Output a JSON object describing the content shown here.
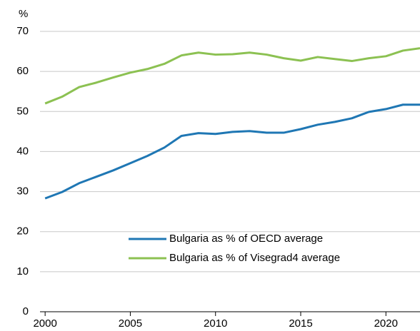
{
  "chart_data": {
    "type": "line",
    "y_unit_label": "%",
    "x": [
      2000,
      2001,
      2002,
      2003,
      2004,
      2005,
      2006,
      2007,
      2008,
      2009,
      2010,
      2011,
      2012,
      2013,
      2014,
      2015,
      2016,
      2017,
      2018,
      2019,
      2020,
      2021,
      2022
    ],
    "series": [
      {
        "name": "Bulgaria as % of OECD average",
        "color": "#1f77b4",
        "values": [
          28.3,
          29.9,
          32.1,
          33.7,
          35.3,
          37.1,
          38.9,
          41.0,
          43.9,
          44.6,
          44.4,
          44.9,
          45.1,
          44.7,
          44.7,
          45.6,
          46.7,
          47.4,
          48.3,
          49.9,
          50.6,
          51.7,
          51.7
        ]
      },
      {
        "name": "Bulgaria as % of Visegrad4 average",
        "color": "#8cc152",
        "values": [
          52.0,
          53.7,
          56.1,
          57.2,
          58.5,
          59.7,
          60.6,
          61.9,
          64.0,
          64.7,
          64.2,
          64.3,
          64.7,
          64.2,
          63.3,
          62.7,
          63.6,
          63.1,
          62.6,
          63.3,
          63.8,
          65.2,
          65.8
        ]
      }
    ],
    "xlim": [
      1999.7,
      2022
    ],
    "xticks": [
      2000,
      2005,
      2010,
      2015,
      2020
    ],
    "ylim": [
      0,
      70
    ],
    "yticks": [
      0,
      10,
      20,
      30,
      40,
      50,
      60,
      70
    ],
    "grid": true,
    "legend": "bottom"
  }
}
